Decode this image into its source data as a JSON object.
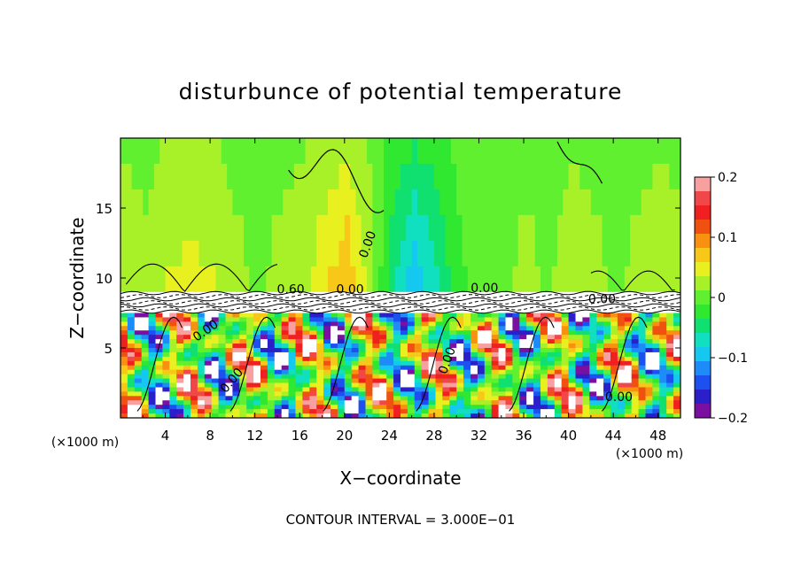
{
  "chart_data": {
    "type": "heatmap",
    "title": "disturbunce of potential temperature",
    "xlabel": "X−coordinate",
    "ylabel": "Z−coordinate",
    "x_unit": "(×1000 m)",
    "z_unit": "(×1000 m)",
    "footer": "CONTOUR INTERVAL = 3.000E−01",
    "xlim": [
      0,
      50
    ],
    "ylim": [
      0,
      20
    ],
    "x_ticks": [
      4,
      8,
      12,
      16,
      20,
      24,
      28,
      32,
      36,
      40,
      44,
      48
    ],
    "y_ticks": [
      5,
      10,
      15
    ],
    "colorbar": {
      "range": [
        -0.2,
        0.2
      ],
      "tick_labels": [
        "0.2",
        "0.1",
        "0",
        "−0.1",
        "−0.2"
      ],
      "tick_values": [
        0.2,
        0.1,
        0,
        -0.1,
        -0.2
      ],
      "colors": [
        "#7a0fa0",
        "#2a1fc8",
        "#1c50f0",
        "#1e8cf8",
        "#14c8f0",
        "#10e0c0",
        "#10e070",
        "#30e830",
        "#60f030",
        "#a8f028",
        "#e8f020",
        "#f8c818",
        "#f89010",
        "#f05010",
        "#f02020",
        "#f04848",
        "#f8a0a0"
      ]
    },
    "contour_labels": [
      "0.00",
      "0.00",
      "0.00",
      "0.00",
      "0.00",
      "0.60",
      "0.00",
      "0.00",
      "0.00"
    ],
    "upper_layer": [
      {
        "x": 0,
        "v": 0.03
      },
      {
        "x": 2,
        "v": 0.02
      },
      {
        "x": 4,
        "v": 0.04
      },
      {
        "x": 6,
        "v": 0.05
      },
      {
        "x": 8,
        "v": 0.04
      },
      {
        "x": 10,
        "v": 0.02
      },
      {
        "x": 12,
        "v": 0.01
      },
      {
        "x": 14,
        "v": 0.02
      },
      {
        "x": 16,
        "v": 0.03
      },
      {
        "x": 18,
        "v": 0.06
      },
      {
        "x": 20,
        "v": 0.09
      },
      {
        "x": 22,
        "v": 0.03
      },
      {
        "x": 24,
        "v": -0.06
      },
      {
        "x": 26,
        "v": -0.11
      },
      {
        "x": 28,
        "v": -0.07
      },
      {
        "x": 30,
        "v": -0.02
      },
      {
        "x": 32,
        "v": 0.0
      },
      {
        "x": 34,
        "v": 0.01
      },
      {
        "x": 36,
        "v": 0.02
      },
      {
        "x": 38,
        "v": 0.01
      },
      {
        "x": 40,
        "v": 0.03
      },
      {
        "x": 42,
        "v": 0.02
      },
      {
        "x": 44,
        "v": 0.01
      },
      {
        "x": 46,
        "v": 0.02
      },
      {
        "x": 48,
        "v": 0.03
      },
      {
        "x": 50,
        "v": 0.02
      }
    ]
  }
}
